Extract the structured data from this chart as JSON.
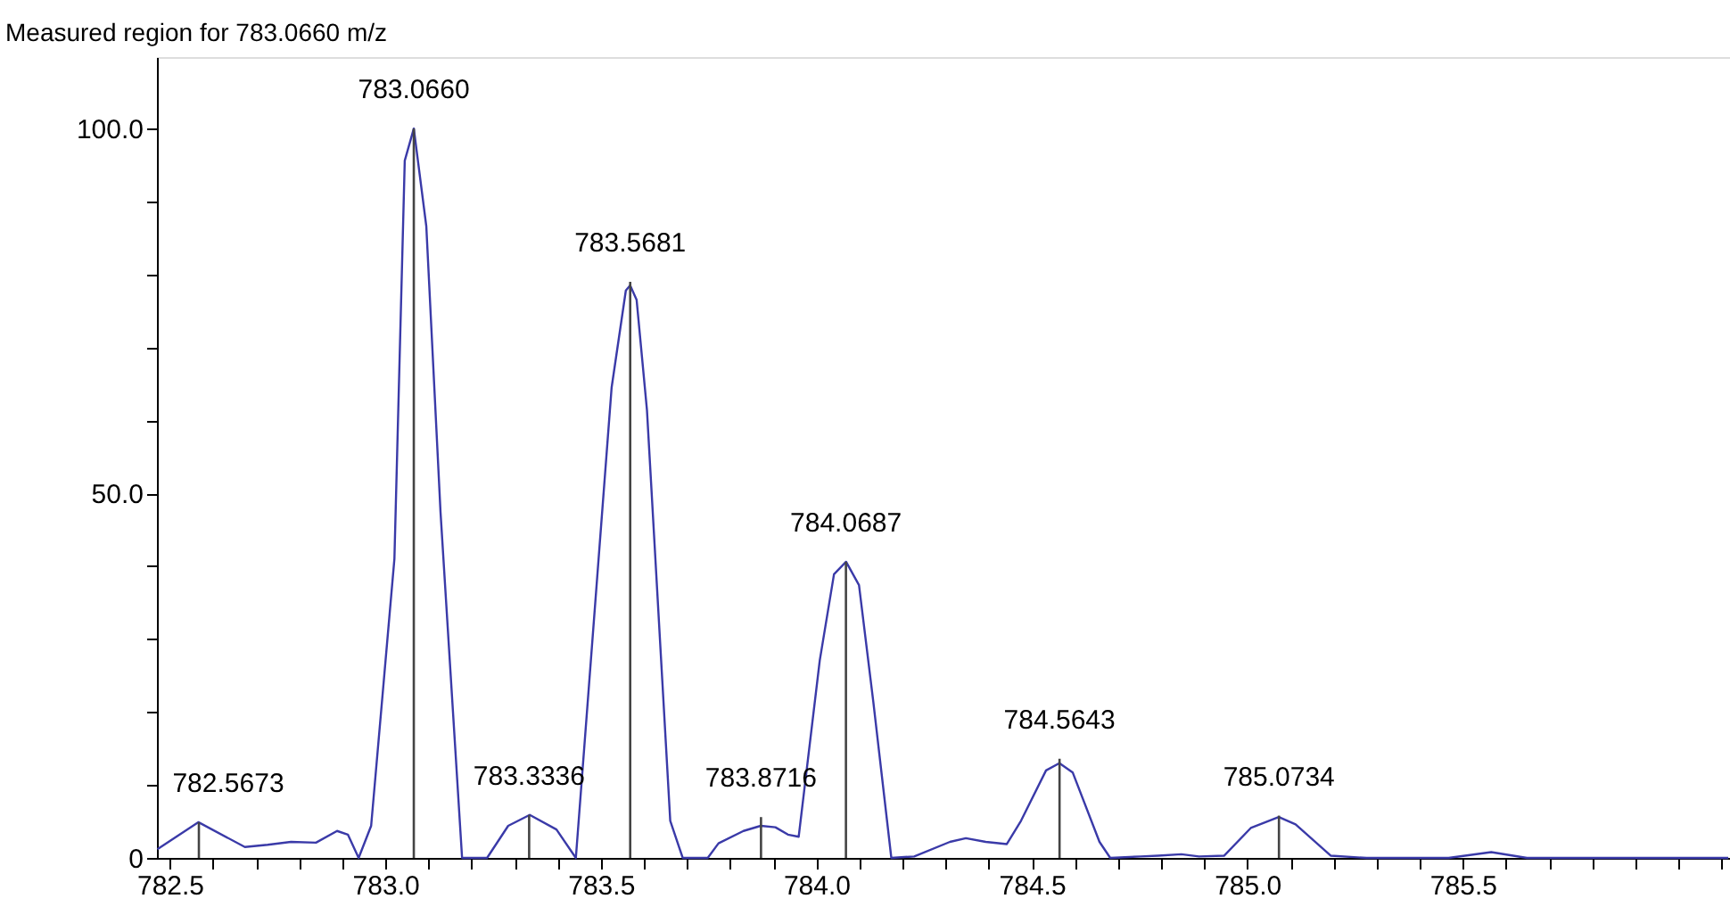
{
  "chart_data": {
    "type": "line",
    "title": "Measured region for 783.0660 m/z",
    "xlim": [
      782.47,
      786.12
    ],
    "ylim": [
      0,
      109.8
    ],
    "xticks": [
      {
        "value": 782.5,
        "label": "782.5"
      },
      {
        "value": 782.6,
        "label": null
      },
      {
        "value": 782.7,
        "label": null
      },
      {
        "value": 782.8,
        "label": null
      },
      {
        "value": 782.9,
        "label": null
      },
      {
        "value": 783.0,
        "label": "783.0"
      },
      {
        "value": 783.1,
        "label": null
      },
      {
        "value": 783.2,
        "label": null
      },
      {
        "value": 783.3,
        "label": null
      },
      {
        "value": 783.4,
        "label": null
      },
      {
        "value": 783.5,
        "label": "783.5"
      },
      {
        "value": 783.6,
        "label": null
      },
      {
        "value": 783.7,
        "label": null
      },
      {
        "value": 783.8,
        "label": null
      },
      {
        "value": 783.9,
        "label": null
      },
      {
        "value": 784.0,
        "label": "784.0"
      },
      {
        "value": 784.1,
        "label": null
      },
      {
        "value": 784.2,
        "label": null
      },
      {
        "value": 784.3,
        "label": null
      },
      {
        "value": 784.4,
        "label": null
      },
      {
        "value": 784.5,
        "label": "784.5"
      },
      {
        "value": 784.6,
        "label": null
      },
      {
        "value": 784.7,
        "label": null
      },
      {
        "value": 784.8,
        "label": null
      },
      {
        "value": 784.9,
        "label": null
      },
      {
        "value": 785.0,
        "label": "785.0"
      },
      {
        "value": 785.1,
        "label": null
      },
      {
        "value": 785.2,
        "label": null
      },
      {
        "value": 785.3,
        "label": null
      },
      {
        "value": 785.4,
        "label": null
      },
      {
        "value": 785.5,
        "label": "785.5"
      },
      {
        "value": 785.6,
        "label": null
      },
      {
        "value": 785.7,
        "label": null
      },
      {
        "value": 785.8,
        "label": null
      },
      {
        "value": 785.9,
        "label": null
      },
      {
        "value": 786.0,
        "label": null
      },
      {
        "value": 786.1,
        "label": null
      }
    ],
    "yticks": [
      {
        "value": 0,
        "label": "0"
      },
      {
        "value": 10,
        "label": null
      },
      {
        "value": 20,
        "label": null
      },
      {
        "value": 30,
        "label": null
      },
      {
        "value": 40,
        "label": null
      },
      {
        "value": 50,
        "label": "50.0"
      },
      {
        "value": 60,
        "label": null
      },
      {
        "value": 70,
        "label": null
      },
      {
        "value": 80,
        "label": null
      },
      {
        "value": 90,
        "label": null
      },
      {
        "value": 100,
        "label": "100.0"
      }
    ],
    "grid": false,
    "series": [
      {
        "type": "line",
        "color": "#3a3aa8",
        "x": [
          782.471,
          782.566,
          782.674,
          782.727,
          782.781,
          782.839,
          782.888,
          782.913,
          782.938,
          782.967,
          783.021,
          783.045,
          783.066,
          783.095,
          783.128,
          783.178,
          783.236,
          783.285,
          783.335,
          783.397,
          783.442,
          783.525,
          783.558,
          783.568,
          783.583,
          783.607,
          783.661,
          783.69,
          783.748,
          783.773,
          783.831,
          783.871,
          783.905,
          783.934,
          783.959,
          784.008,
          784.041,
          784.069,
          784.099,
          784.132,
          784.174,
          784.227,
          784.31,
          784.347,
          784.393,
          784.442,
          784.475,
          784.533,
          784.564,
          784.595,
          784.657,
          784.682,
          784.752,
          784.793,
          784.847,
          784.888,
          784.946,
          785.008,
          785.073,
          785.112,
          785.194,
          785.277,
          785.467,
          785.566,
          785.649,
          786.116
        ],
        "values": [
          1.2,
          4.9,
          1.5,
          1.8,
          2.2,
          2.1,
          3.7,
          3.2,
          0,
          4.4,
          41,
          95.6,
          100,
          86.6,
          47.4,
          0,
          0,
          4.4,
          5.9,
          3.9,
          0,
          64.5,
          77.8,
          78.5,
          76.5,
          61.4,
          5.1,
          0,
          0,
          2.0,
          3.7,
          4.4,
          4.2,
          3.2,
          2.9,
          27.1,
          38.9,
          40.6,
          37.4,
          21.5,
          0,
          0.2,
          2.2,
          2.7,
          2.2,
          1.9,
          5.1,
          12.0,
          13.0,
          11.7,
          2.2,
          0,
          0.2,
          0.3,
          0.5,
          0.2,
          0.3,
          4.1,
          5.6,
          4.6,
          0.3,
          0,
          0,
          0.8,
          0,
          0
        ]
      },
      {
        "type": "bar",
        "color": "#444444",
        "x": [
          782.5673,
          783.066,
          783.3336,
          783.5681,
          783.8716,
          784.0687,
          784.5643,
          785.0734
        ],
        "values": [
          4.9,
          100,
          5.9,
          79,
          5.6,
          40.6,
          13.6,
          5.8
        ]
      }
    ],
    "annotations": [
      {
        "text": "782.5673",
        "x": 782.5673,
        "y": 4.9
      },
      {
        "text": "783.0660",
        "x": 783.066,
        "y": 100
      },
      {
        "text": "783.3336",
        "x": 783.3336,
        "y": 5.9
      },
      {
        "text": "783.5681",
        "x": 783.5681,
        "y": 79
      },
      {
        "text": "783.8716",
        "x": 783.8716,
        "y": 5.6
      },
      {
        "text": "784.0687",
        "x": 784.0687,
        "y": 40.6
      },
      {
        "text": "784.5643",
        "x": 784.5643,
        "y": 13.6
      },
      {
        "text": "785.0734",
        "x": 785.0734,
        "y": 5.8
      }
    ]
  }
}
